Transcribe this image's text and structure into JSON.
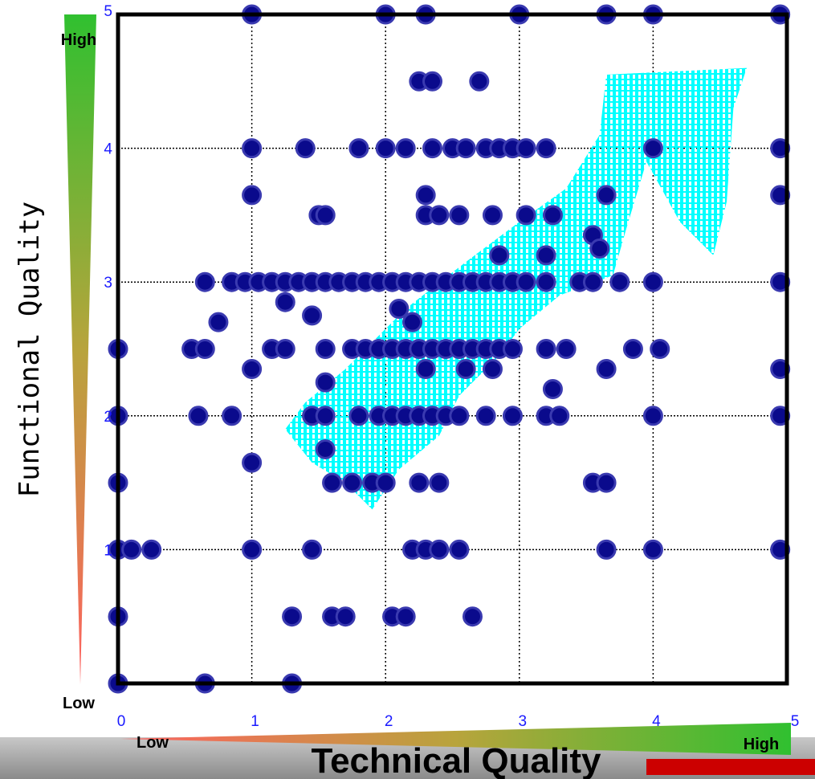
{
  "chart_data": {
    "type": "scatter",
    "title": "",
    "xlabel": "Technical Quality",
    "ylabel": "Functional Quality",
    "xlim": [
      0,
      5
    ],
    "ylim": [
      0,
      5
    ],
    "x_ticks": [
      "0",
      "1",
      "2",
      "3",
      "4",
      "5"
    ],
    "y_ticks": [
      "1",
      "2",
      "3",
      "4",
      "5"
    ],
    "x_scale": {
      "low_label": "Low",
      "high_label": "High"
    },
    "y_scale": {
      "low_label": "Low",
      "high_label": "High"
    },
    "grid": "dotted",
    "colors": {
      "point": "#0a0a8c",
      "point_edge": "#3a3ab0",
      "shaded_region": "#00ffff",
      "gradient_low": "#ff6060",
      "gradient_mid": "#b8a43c",
      "gradient_high": "#30c030",
      "footer_accent": "#cc0000"
    },
    "shaded_region_outline": [
      [
        1.25,
        1.9
      ],
      [
        1.4,
        2.1
      ],
      [
        1.7,
        2.35
      ],
      [
        2.15,
        2.8
      ],
      [
        2.6,
        3.15
      ],
      [
        3.0,
        3.45
      ],
      [
        3.35,
        3.7
      ],
      [
        3.6,
        4.1
      ],
      [
        3.65,
        4.55
      ],
      [
        4.7,
        4.6
      ],
      [
        4.6,
        4.3
      ],
      [
        4.55,
        3.6
      ],
      [
        4.45,
        3.2
      ],
      [
        4.2,
        3.45
      ],
      [
        3.95,
        3.9
      ],
      [
        3.8,
        3.4
      ],
      [
        3.7,
        3.05
      ],
      [
        3.3,
        2.9
      ],
      [
        3.0,
        2.65
      ],
      [
        2.85,
        2.45
      ],
      [
        2.55,
        2.15
      ],
      [
        2.4,
        1.85
      ],
      [
        2.1,
        1.6
      ],
      [
        1.9,
        1.3
      ],
      [
        1.7,
        1.5
      ],
      [
        1.45,
        1.65
      ]
    ],
    "points": [
      [
        1,
        5
      ],
      [
        2,
        5
      ],
      [
        2.3,
        5
      ],
      [
        3,
        5
      ],
      [
        3.65,
        5
      ],
      [
        4,
        5
      ],
      [
        4.95,
        5
      ],
      [
        2.25,
        4.5
      ],
      [
        2.35,
        4.5
      ],
      [
        2.7,
        4.5
      ],
      [
        1,
        4
      ],
      [
        1.4,
        4
      ],
      [
        1.8,
        4
      ],
      [
        2,
        4
      ],
      [
        2.15,
        4
      ],
      [
        2.35,
        4
      ],
      [
        2.5,
        4
      ],
      [
        2.6,
        4
      ],
      [
        2.75,
        4
      ],
      [
        2.85,
        4
      ],
      [
        2.95,
        4
      ],
      [
        3.05,
        4
      ],
      [
        3.2,
        4
      ],
      [
        4,
        4
      ],
      [
        4.95,
        4
      ],
      [
        1,
        3.65
      ],
      [
        2.3,
        3.65
      ],
      [
        3.65,
        3.65
      ],
      [
        4.95,
        3.65
      ],
      [
        1.5,
        3.5
      ],
      [
        1.55,
        3.5
      ],
      [
        2.3,
        3.5
      ],
      [
        2.4,
        3.5
      ],
      [
        2.55,
        3.5
      ],
      [
        2.8,
        3.5
      ],
      [
        3.05,
        3.5
      ],
      [
        3.25,
        3.5
      ],
      [
        3.55,
        3.35
      ],
      [
        3.6,
        3.25
      ],
      [
        3.2,
        3.2
      ],
      [
        2.85,
        3.2
      ],
      [
        0.65,
        3
      ],
      [
        0.85,
        3
      ],
      [
        0.95,
        3
      ],
      [
        1.05,
        3
      ],
      [
        1.15,
        3
      ],
      [
        1.25,
        3
      ],
      [
        1.35,
        3
      ],
      [
        1.45,
        3
      ],
      [
        1.55,
        3
      ],
      [
        1.65,
        3
      ],
      [
        1.75,
        3
      ],
      [
        1.85,
        3
      ],
      [
        1.95,
        3
      ],
      [
        2.05,
        3
      ],
      [
        2.15,
        3
      ],
      [
        2.25,
        3
      ],
      [
        2.35,
        3
      ],
      [
        2.45,
        3
      ],
      [
        2.55,
        3
      ],
      [
        2.65,
        3
      ],
      [
        2.75,
        3
      ],
      [
        2.85,
        3
      ],
      [
        2.95,
        3
      ],
      [
        3.05,
        3
      ],
      [
        3.2,
        3
      ],
      [
        3.45,
        3
      ],
      [
        3.55,
        3
      ],
      [
        3.75,
        3
      ],
      [
        4,
        3
      ],
      [
        4.95,
        3
      ],
      [
        1.25,
        2.85
      ],
      [
        1.45,
        2.75
      ],
      [
        2.1,
        2.8
      ],
      [
        2.2,
        2.7
      ],
      [
        0.75,
        2.7
      ],
      [
        0,
        2.5
      ],
      [
        0.55,
        2.5
      ],
      [
        0.65,
        2.5
      ],
      [
        1.15,
        2.5
      ],
      [
        1.25,
        2.5
      ],
      [
        1.55,
        2.5
      ],
      [
        1.75,
        2.5
      ],
      [
        1.85,
        2.5
      ],
      [
        1.95,
        2.5
      ],
      [
        2.05,
        2.5
      ],
      [
        2.15,
        2.5
      ],
      [
        2.25,
        2.5
      ],
      [
        2.35,
        2.5
      ],
      [
        2.45,
        2.5
      ],
      [
        2.55,
        2.5
      ],
      [
        2.65,
        2.5
      ],
      [
        2.75,
        2.5
      ],
      [
        2.85,
        2.5
      ],
      [
        2.95,
        2.5
      ],
      [
        3.2,
        2.5
      ],
      [
        3.35,
        2.5
      ],
      [
        3.85,
        2.5
      ],
      [
        4.05,
        2.5
      ],
      [
        1,
        2.35
      ],
      [
        2.3,
        2.35
      ],
      [
        2.6,
        2.35
      ],
      [
        2.8,
        2.35
      ],
      [
        3.65,
        2.35
      ],
      [
        4.95,
        2.35
      ],
      [
        1.55,
        2.25
      ],
      [
        3.25,
        2.2
      ],
      [
        0,
        2
      ],
      [
        0.6,
        2
      ],
      [
        0.85,
        2
      ],
      [
        1.45,
        2
      ],
      [
        1.55,
        2
      ],
      [
        1.8,
        2
      ],
      [
        1.95,
        2
      ],
      [
        2.05,
        2
      ],
      [
        2.15,
        2
      ],
      [
        2.25,
        2
      ],
      [
        2.35,
        2
      ],
      [
        2.45,
        2
      ],
      [
        2.55,
        2
      ],
      [
        2.75,
        2
      ],
      [
        2.95,
        2
      ],
      [
        3.2,
        2
      ],
      [
        3.3,
        2
      ],
      [
        4,
        2
      ],
      [
        4.95,
        2
      ],
      [
        1.55,
        1.75
      ],
      [
        1,
        1.65
      ],
      [
        0,
        1.5
      ],
      [
        1.6,
        1.5
      ],
      [
        1.75,
        1.5
      ],
      [
        1.9,
        1.5
      ],
      [
        2,
        1.5
      ],
      [
        2.25,
        1.5
      ],
      [
        2.4,
        1.5
      ],
      [
        3.55,
        1.5
      ],
      [
        3.65,
        1.5
      ],
      [
        0,
        1
      ],
      [
        0.1,
        1
      ],
      [
        0.25,
        1
      ],
      [
        1,
        1
      ],
      [
        1.45,
        1
      ],
      [
        2.2,
        1
      ],
      [
        2.3,
        1
      ],
      [
        2.4,
        1
      ],
      [
        2.55,
        1
      ],
      [
        3.65,
        1
      ],
      [
        4,
        1
      ],
      [
        4.95,
        1
      ],
      [
        0,
        0.5
      ],
      [
        1.3,
        0.5
      ],
      [
        1.6,
        0.5
      ],
      [
        1.7,
        0.5
      ],
      [
        2.05,
        0.5
      ],
      [
        2.15,
        0.5
      ],
      [
        2.65,
        0.5
      ],
      [
        0,
        0
      ],
      [
        0.65,
        0
      ],
      [
        1.3,
        0
      ]
    ]
  }
}
